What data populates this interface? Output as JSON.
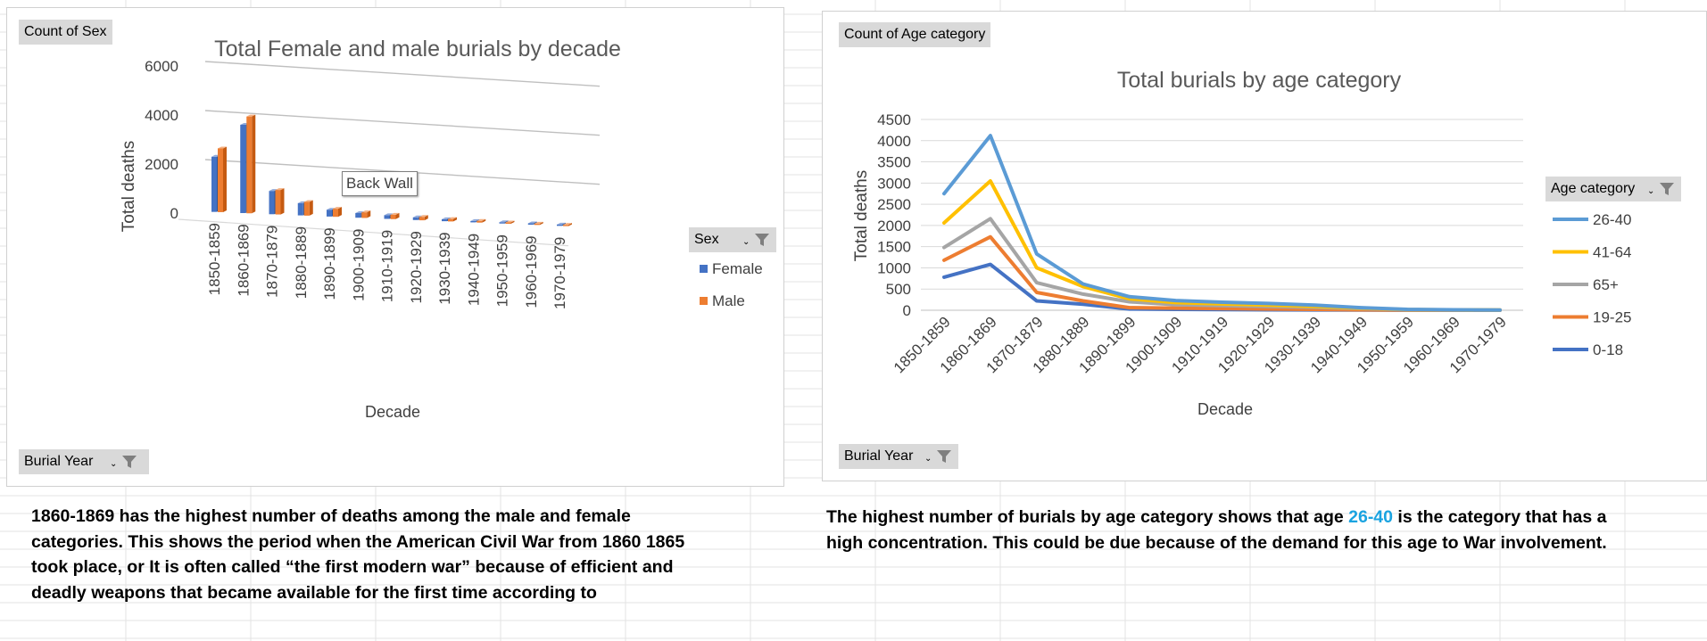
{
  "chart_data": [
    {
      "type": "bar",
      "title": "Total Female and male burials by decade",
      "xlabel": "Decade",
      "ylabel": "Total deaths",
      "ylim": [
        0,
        6000
      ],
      "yticks": [
        "6000",
        "4000",
        "2000",
        "0"
      ],
      "grid": true,
      "legend_position": "right",
      "categories": [
        "1850-1859",
        "1860-1869",
        "1870-1879",
        "1880-1889",
        "1890-1899",
        "1900-1909",
        "1910-1919",
        "1920-1929",
        "1930-1939",
        "1940-1949",
        "1950-1959",
        "1960-1969",
        "1970-1979"
      ],
      "series": [
        {
          "name": "Female",
          "color": "#4472c4",
          "values": [
            2250,
            3600,
            950,
            500,
            280,
            190,
            150,
            110,
            80,
            50,
            30,
            15,
            10
          ]
        },
        {
          "name": "Male",
          "color": "#ed7d31",
          "values": [
            2600,
            3950,
            1000,
            560,
            330,
            230,
            180,
            140,
            100,
            70,
            40,
            20,
            10
          ]
        }
      ],
      "field_button": "Count of Sex",
      "legend_button": "Sex",
      "axis_button": "Burial Year",
      "hover_tooltip": "Back Wall"
    },
    {
      "type": "line",
      "title": "Total burials by age category",
      "xlabel": "Decade",
      "ylabel": "Total deaths",
      "ylim": [
        0,
        4500
      ],
      "yticks": [
        "4500",
        "4000",
        "3500",
        "3000",
        "2500",
        "2000",
        "1500",
        "1000",
        "500",
        "0"
      ],
      "grid": true,
      "legend_position": "right",
      "categories": [
        "1850-1859",
        "1860-1869",
        "1870-1879",
        "1880-1889",
        "1890-1899",
        "1900-1909",
        "1910-1919",
        "1920-1929",
        "1930-1939",
        "1940-1949",
        "1950-1959",
        "1960-1969",
        "1970-1979"
      ],
      "series": [
        {
          "name": "26-40",
          "color": "#5b9bd5",
          "values": [
            2750,
            4120,
            1330,
            620,
            320,
            230,
            190,
            160,
            120,
            60,
            20,
            10,
            5
          ]
        },
        {
          "name": "41-64",
          "color": "#ffc000",
          "values": [
            2060,
            3050,
            1000,
            560,
            270,
            180,
            150,
            120,
            90,
            50,
            15,
            8,
            4
          ]
        },
        {
          "name": "65+",
          "color": "#a5a5a5",
          "values": [
            1480,
            2160,
            650,
            380,
            200,
            130,
            110,
            90,
            70,
            40,
            12,
            6,
            3
          ]
        },
        {
          "name": "19-25",
          "color": "#ed7d31",
          "values": [
            1180,
            1730,
            420,
            220,
            60,
            50,
            40,
            30,
            20,
            10,
            5,
            3,
            2
          ]
        },
        {
          "name": "0-18",
          "color": "#4472c4",
          "values": [
            780,
            1080,
            220,
            140,
            30,
            20,
            15,
            10,
            8,
            5,
            3,
            2,
            1
          ]
        }
      ],
      "field_button": "Count of Age category",
      "legend_button": "Age category",
      "axis_button": "Burial Year"
    }
  ],
  "descriptions": {
    "left_lines": [
      "1860-1869 has the highest number of deaths among the male and female",
      "categories. This shows the period when the American Civil War from 1860 1865",
      "took place, or It is often called “the first modern war” because of efficient and",
      "deadly weapons that became available for the first time according to"
    ],
    "right_line1_before": "The highest number of burials by age category shows that age ",
    "right_line1_highlight": "26-40",
    "right_line1_after": " is the category that has a",
    "right_line2": "high concentration. This could be due because of the demand for this age to War involvement."
  }
}
